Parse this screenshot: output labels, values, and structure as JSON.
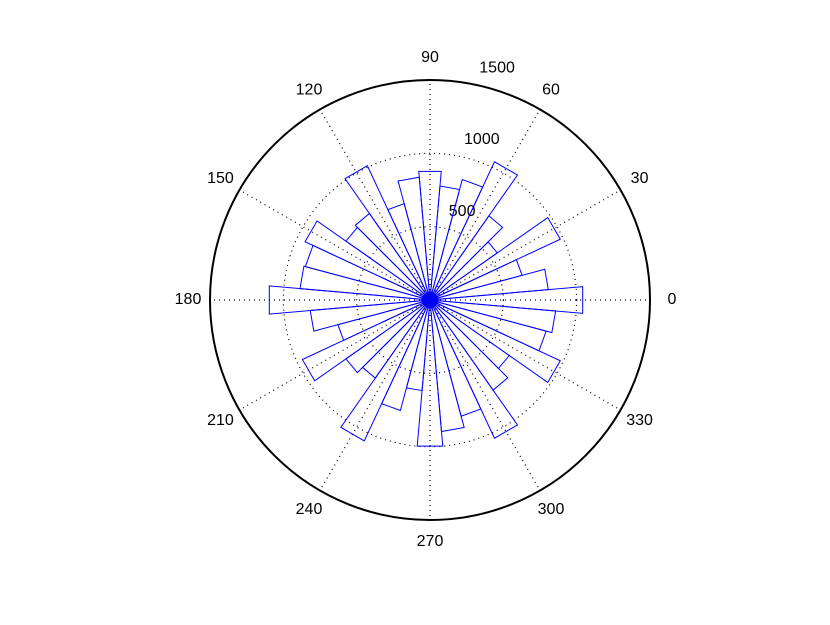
{
  "chart_data": {
    "type": "rose",
    "bin_width": 10,
    "bins": [
      0,
      10,
      20,
      30,
      40,
      50,
      60,
      70,
      80,
      90,
      100,
      110,
      120,
      130,
      140,
      150,
      160,
      170,
      180,
      190,
      200,
      210,
      220,
      230,
      240,
      250,
      260,
      270,
      280,
      290,
      300,
      310,
      320,
      330,
      340,
      350
    ],
    "values": [
      1045,
      810,
      650,
      980,
      560,
      700,
      1040,
      850,
      780,
      880,
      840,
      680,
      1010,
      720,
      700,
      940,
      880,
      890,
      1100,
      820,
      650,
      960,
      700,
      650,
      1060,
      780,
      620,
      1000,
      900,
      820,
      1040,
      750,
      660,
      980,
      820,
      860
    ],
    "color": "#0000ff",
    "rlim": [
      0,
      1500
    ],
    "rticks": [
      500,
      1000,
      1500
    ],
    "thetaticks": [
      0,
      30,
      60,
      90,
      120,
      150,
      180,
      210,
      240,
      270,
      300,
      330
    ],
    "grid": true
  }
}
